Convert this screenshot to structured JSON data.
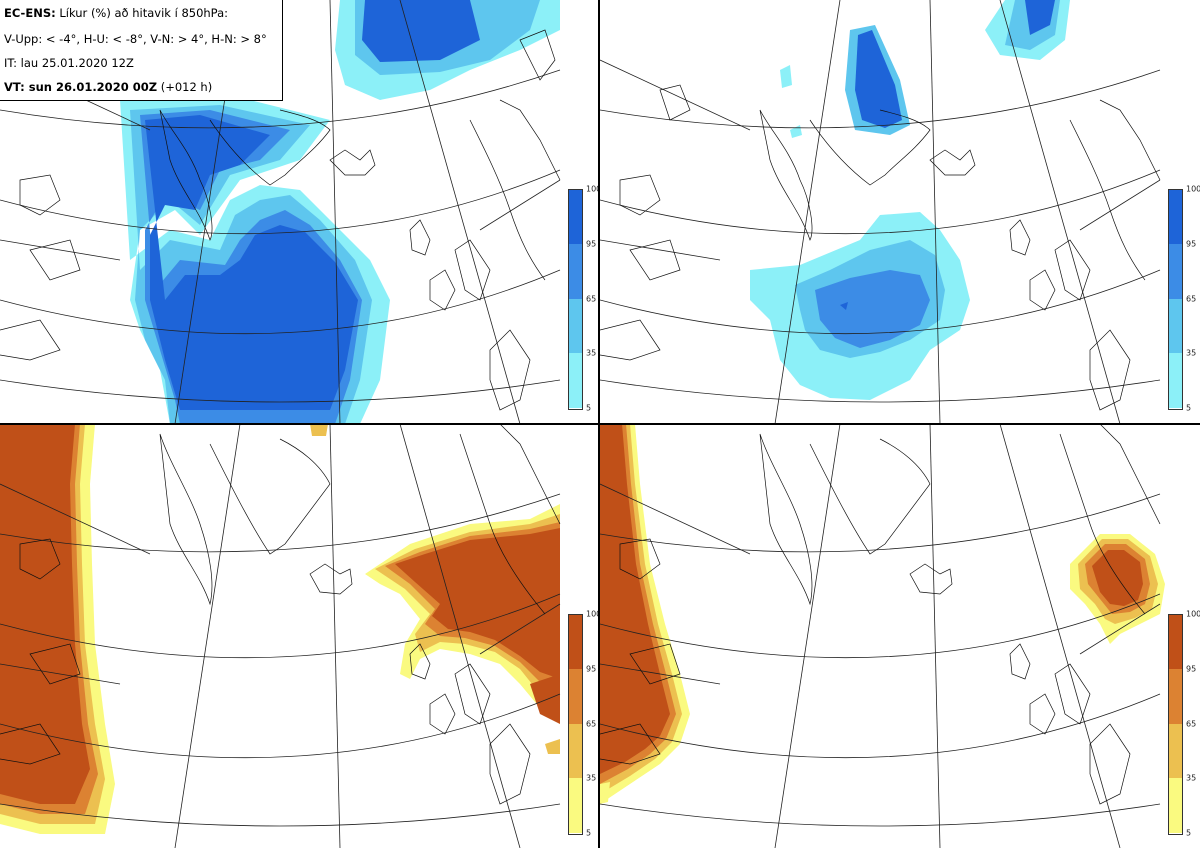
{
  "header": {
    "model": "EC-ENS:",
    "title": "Líkur (%) að hitavik í 850hPa:",
    "thresholds": "V-Upp: < -4°, H-U: < -8°, V-N: > 4°, H-N: > 8°",
    "initial_time": "IT: lau 25.01.2020 12Z",
    "valid_label": "VT: sun 26.01.2020 00Z",
    "lead": "(+012 h)"
  },
  "colorbar_cold": {
    "ticks": [
      "100",
      "95",
      "65",
      "35",
      "5"
    ],
    "colors": [
      "#1e64d8",
      "#3c8ce6",
      "#5ec6ee",
      "#8cf0f8"
    ]
  },
  "colorbar_warm": {
    "ticks": [
      "100",
      "95",
      "65",
      "35",
      "5"
    ],
    "colors": [
      "#c05018",
      "#dc8232",
      "#ecc050",
      "#fafa80"
    ]
  },
  "panels": [
    {
      "id": "V-Upp",
      "quadrant": "top-left",
      "variable": "cold anomaly < -4°"
    },
    {
      "id": "H-U",
      "quadrant": "top-right",
      "variable": "cold anomaly < -8°"
    },
    {
      "id": "V-N",
      "quadrant": "bottom-left",
      "variable": "warm anomaly > 4°"
    },
    {
      "id": "H-N",
      "quadrant": "bottom-right",
      "variable": "warm anomaly > 8°"
    }
  ]
}
